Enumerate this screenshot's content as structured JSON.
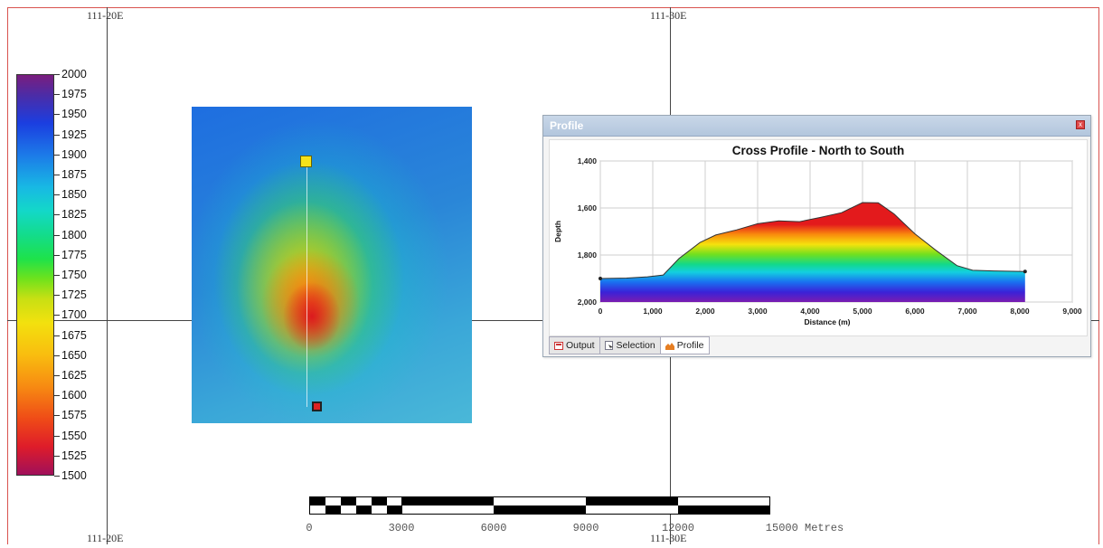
{
  "map": {
    "coord_labels": {
      "top_left": "111-20E",
      "top_right": "111-30E",
      "bottom_left": "111-20E",
      "bottom_right": "111-30E"
    }
  },
  "legend": {
    "labels": [
      "2000",
      "1975",
      "1950",
      "1925",
      "1900",
      "1875",
      "1850",
      "1825",
      "1800",
      "1775",
      "1750",
      "1725",
      "1700",
      "1675",
      "1650",
      "1625",
      "1600",
      "1575",
      "1550",
      "1525",
      "1500"
    ]
  },
  "scale_bar": {
    "labels": [
      "0",
      "3000",
      "6000",
      "9000",
      "12000",
      "15000 Metres"
    ]
  },
  "profile_window": {
    "title": "Profile",
    "close_symbol": "x",
    "tabs": [
      {
        "label": "Output",
        "icon": "output-icon"
      },
      {
        "label": "Selection",
        "icon": "selection-icon"
      },
      {
        "label": "Profile",
        "icon": "profile-icon"
      }
    ],
    "active_tab": "Profile"
  },
  "chart_data": {
    "type": "area",
    "title": "Cross Profile - North to South",
    "xlabel": "Distance (m)",
    "ylabel": "Depth",
    "xlim": [
      0,
      9000
    ],
    "ylim": [
      2000,
      1400
    ],
    "x_ticks": [
      "0",
      "1,000",
      "2,000",
      "3,000",
      "4,000",
      "5,000",
      "6,000",
      "7,000",
      "8,000",
      "9,000"
    ],
    "y_ticks": [
      "1,400",
      "1,600",
      "1,800",
      "2,000"
    ],
    "grid": true,
    "x": [
      0,
      500,
      900,
      1200,
      1500,
      1900,
      2200,
      2600,
      3000,
      3400,
      3800,
      4200,
      4600,
      5000,
      5300,
      5600,
      6000,
      6400,
      6800,
      7100,
      7500,
      8100
    ],
    "y": [
      1900,
      1898,
      1893,
      1885,
      1815,
      1747,
      1715,
      1693,
      1667,
      1655,
      1658,
      1640,
      1620,
      1577,
      1578,
      1625,
      1710,
      1780,
      1845,
      1865,
      1868,
      1870
    ]
  }
}
